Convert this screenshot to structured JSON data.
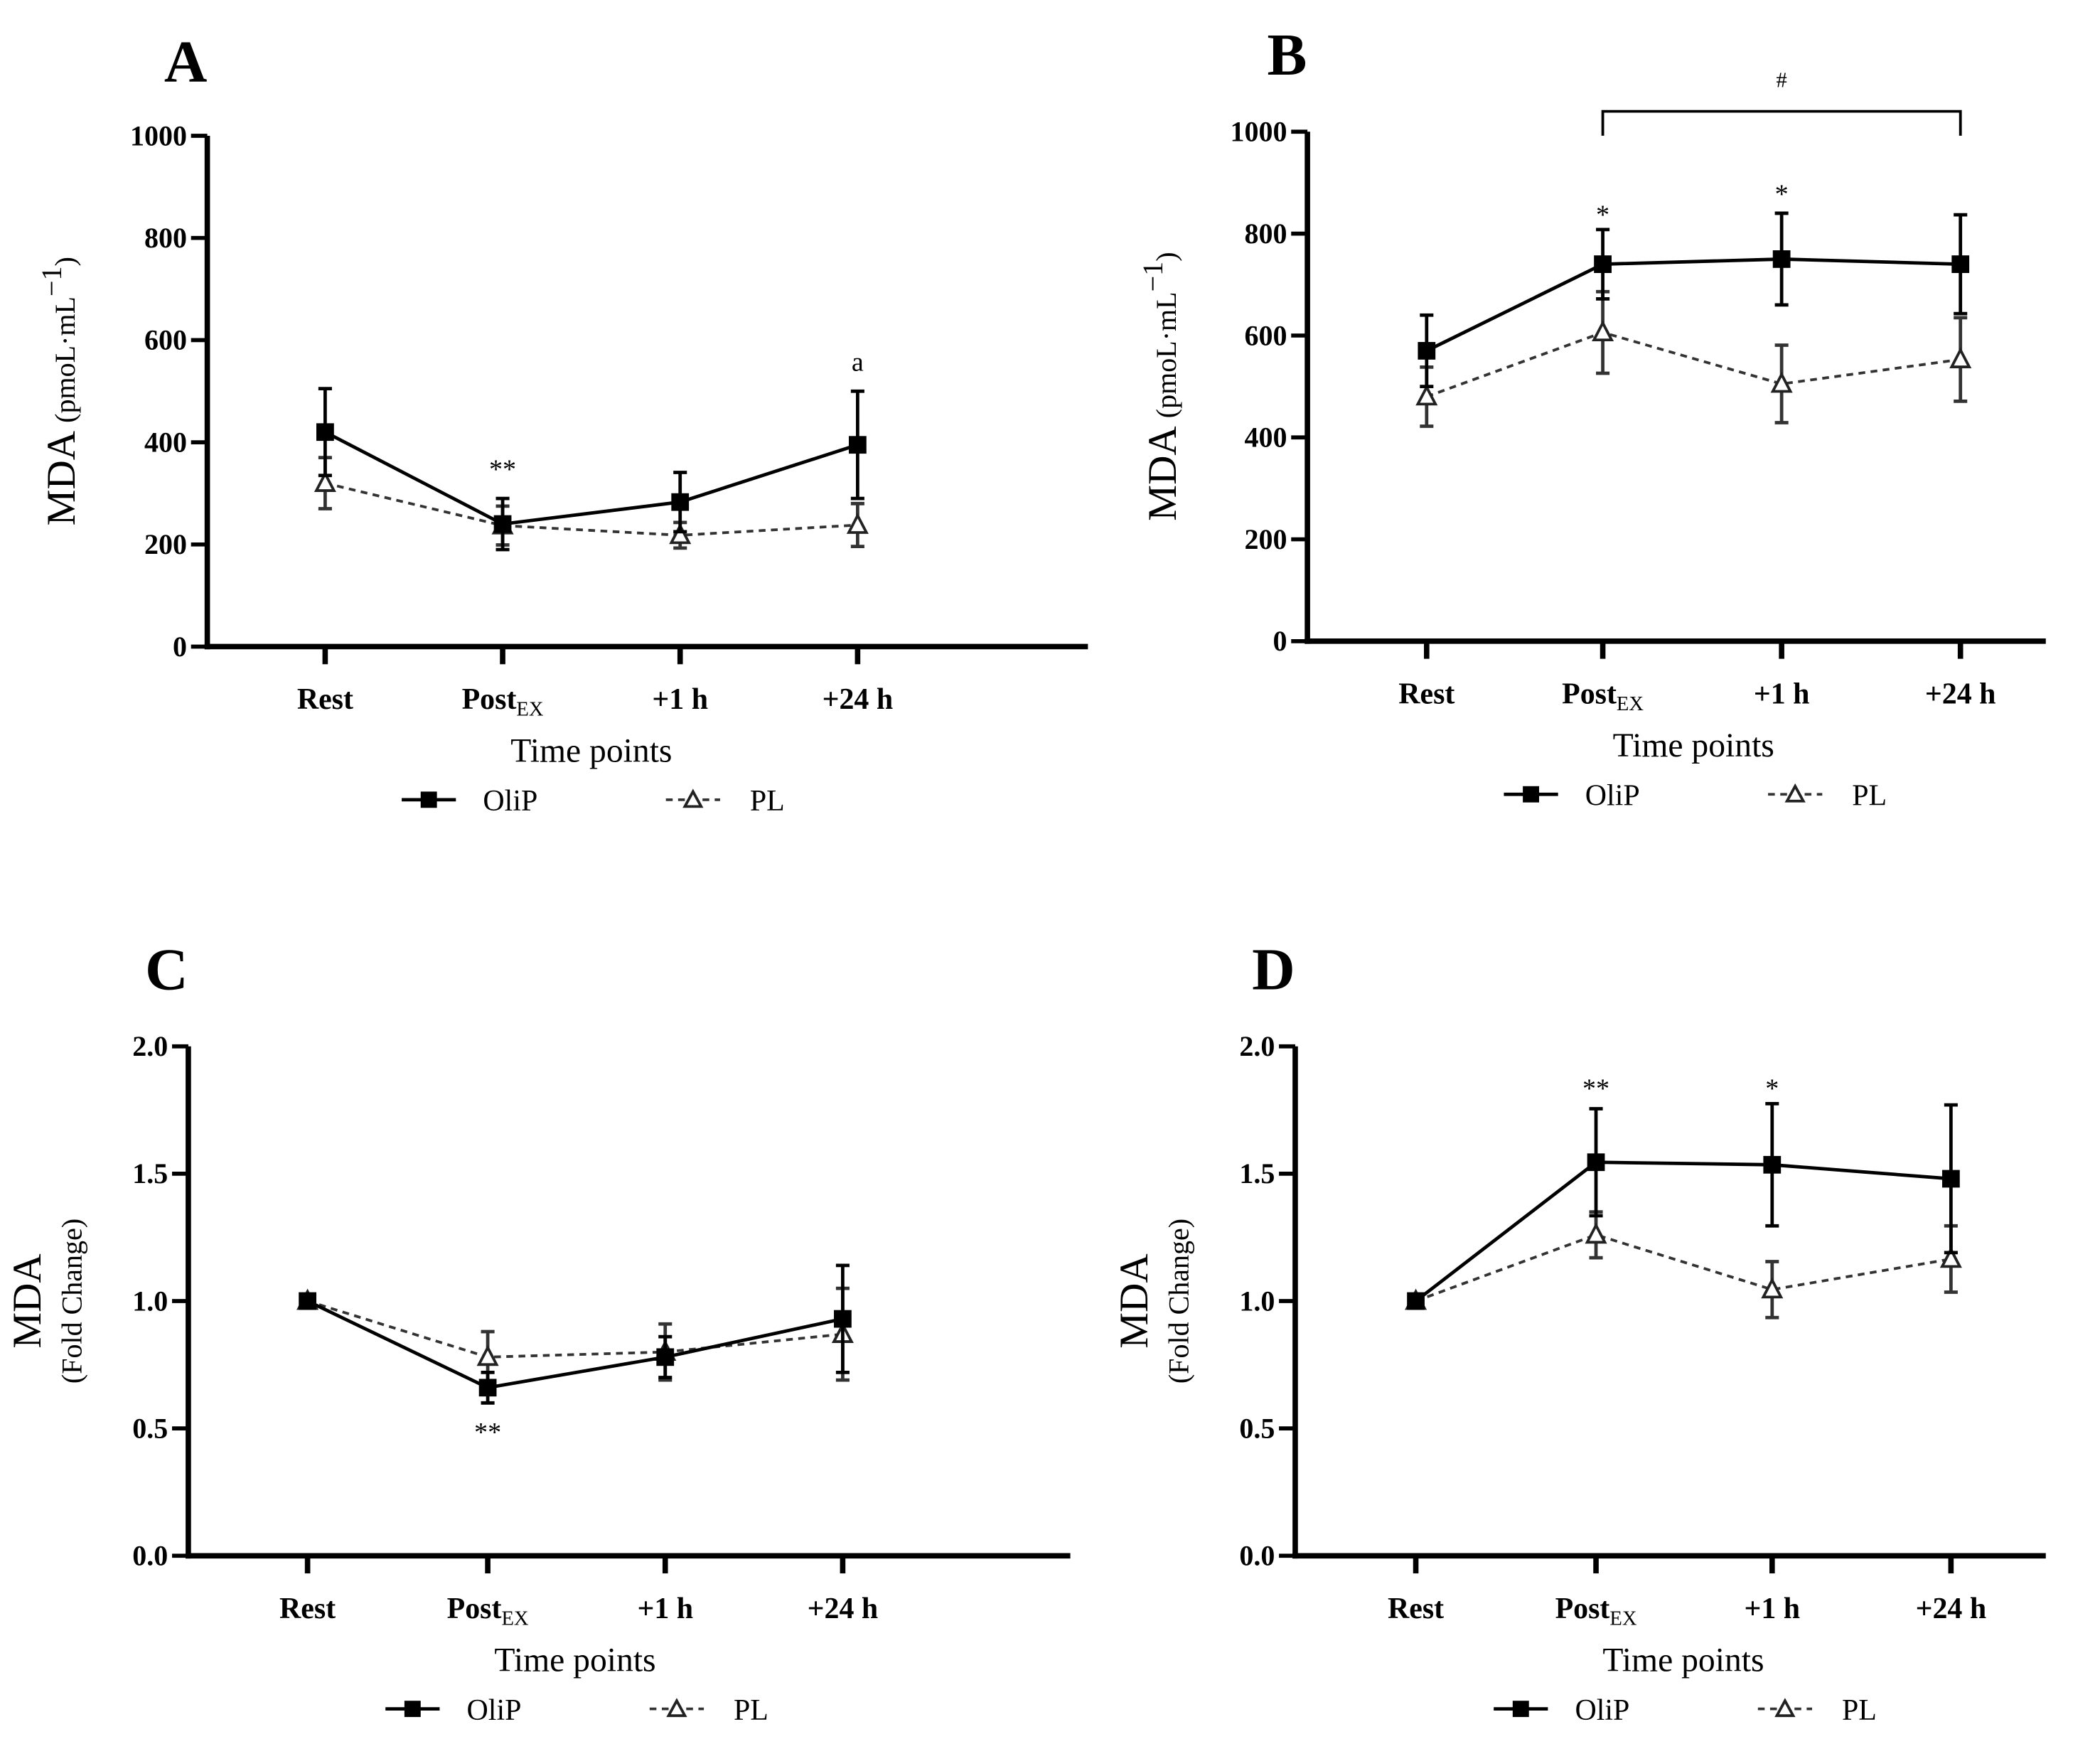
{
  "colors": {
    "oliP": "#000000",
    "pl": "#333333",
    "axis": "#000000"
  },
  "chart_data": [
    {
      "panel": "A",
      "type": "line",
      "categories": [
        "Rest",
        "Post",
        "+1 h",
        "+24 h"
      ],
      "category_subscripts": [
        "",
        "EX",
        "",
        ""
      ],
      "xlabel": "Time points",
      "ylabel": "MDA",
      "ylabel_unit": "(pmoL·mL",
      "ylabel_sup": "−1",
      "ylabel_close": ")",
      "ylim": [
        0,
        1000
      ],
      "yticks": [
        0,
        200,
        400,
        600,
        800,
        1000
      ],
      "ytick_labels": [
        "0",
        "200",
        "400",
        "600",
        "800",
        "1000"
      ],
      "series": [
        {
          "name": "OliP",
          "marker": "filled-square",
          "line": "solid",
          "values": [
            420,
            240,
            283,
            395
          ],
          "errors": [
            85,
            50,
            58,
            105
          ]
        },
        {
          "name": "PL",
          "marker": "open-triangle",
          "line": "dashed",
          "values": [
            320,
            237,
            218,
            238
          ],
          "errors": [
            50,
            38,
            25,
            42
          ]
        }
      ],
      "annotations": [
        {
          "text": "**",
          "category": 1,
          "value": 330
        },
        {
          "text": "a",
          "category": 3,
          "value": 540
        }
      ],
      "bracket": null,
      "legend": "bottom"
    },
    {
      "panel": "B",
      "type": "line",
      "categories": [
        "Rest",
        "Post",
        "+1 h",
        "+24 h"
      ],
      "category_subscripts": [
        "",
        "EX",
        "",
        ""
      ],
      "xlabel": "Time points",
      "ylabel": "MDA",
      "ylabel_unit": "(pmoL·mL",
      "ylabel_sup": "−1",
      "ylabel_close": ")",
      "ylim": [
        0,
        1000
      ],
      "yticks": [
        0,
        200,
        400,
        600,
        800,
        1000
      ],
      "ytick_labels": [
        "0",
        "200",
        "400",
        "600",
        "800",
        "1000"
      ],
      "series": [
        {
          "name": "OliP",
          "marker": "filled-square",
          "line": "solid",
          "values": [
            570,
            740,
            750,
            740
          ],
          "errors": [
            70,
            68,
            90,
            97
          ]
        },
        {
          "name": "PL",
          "marker": "open-triangle",
          "line": "dashed",
          "values": [
            480,
            606,
            505,
            553
          ],
          "errors": [
            58,
            80,
            76,
            82
          ]
        }
      ],
      "annotations": [
        {
          "text": "*",
          "category": 1,
          "value": 820
        },
        {
          "text": "*",
          "category": 2,
          "value": 860
        }
      ],
      "bracket": {
        "from": 1,
        "to": 3,
        "text": "#",
        "value": 1040
      },
      "legend": "bottom"
    },
    {
      "panel": "C",
      "type": "line",
      "categories": [
        "Rest",
        "Post",
        "+1 h",
        "+24 h"
      ],
      "category_subscripts": [
        "",
        "EX",
        "",
        ""
      ],
      "xlabel": "Time points",
      "ylabel": "MDA",
      "ylabel_unit": "(Fold Change)",
      "ylabel_sup": "",
      "ylabel_close": "",
      "ylim": [
        0,
        2.0
      ],
      "yticks": [
        0,
        0.5,
        1.0,
        1.5,
        2.0
      ],
      "ytick_labels": [
        "0.0",
        "0.5",
        "1.0",
        "1.5",
        "2.0"
      ],
      "series": [
        {
          "name": "OliP",
          "marker": "filled-square",
          "line": "solid",
          "values": [
            1.0,
            0.66,
            0.78,
            0.93
          ],
          "errors": [
            0,
            0.06,
            0.08,
            0.21
          ]
        },
        {
          "name": "PL",
          "marker": "open-triangle",
          "line": "dashed",
          "values": [
            1.0,
            0.78,
            0.8,
            0.87
          ],
          "errors": [
            0,
            0.1,
            0.11,
            0.18
          ]
        }
      ],
      "annotations": [
        {
          "text": "**",
          "category": 1,
          "value": 0.45
        }
      ],
      "bracket": null,
      "legend": "bottom"
    },
    {
      "panel": "D",
      "type": "line",
      "categories": [
        "Rest",
        "Post",
        "+1 h",
        "+24 h"
      ],
      "category_subscripts": [
        "",
        "EX",
        "",
        ""
      ],
      "xlabel": "Time points",
      "ylabel": "MDA",
      "ylabel_unit": "(Fold Change)",
      "ylabel_sup": "",
      "ylabel_close": "",
      "ylim": [
        0,
        2.0
      ],
      "yticks": [
        0,
        0.5,
        1.0,
        1.5,
        2.0
      ],
      "ytick_labels": [
        "0.0",
        "0.5",
        "1.0",
        "1.5",
        "2.0"
      ],
      "series": [
        {
          "name": "OliP",
          "marker": "filled-square",
          "line": "solid",
          "values": [
            1.0,
            1.545,
            1.535,
            1.48
          ],
          "errors": [
            0,
            0.21,
            0.24,
            0.29
          ]
        },
        {
          "name": "PL",
          "marker": "open-triangle",
          "line": "dashed",
          "values": [
            1.0,
            1.26,
            1.045,
            1.165
          ],
          "errors": [
            0,
            0.09,
            0.11,
            0.13
          ]
        }
      ],
      "annotations": [
        {
          "text": "**",
          "category": 1,
          "value": 1.8
        },
        {
          "text": "*",
          "category": 2,
          "value": 1.8
        }
      ],
      "bracket": null,
      "legend": "bottom"
    }
  ]
}
